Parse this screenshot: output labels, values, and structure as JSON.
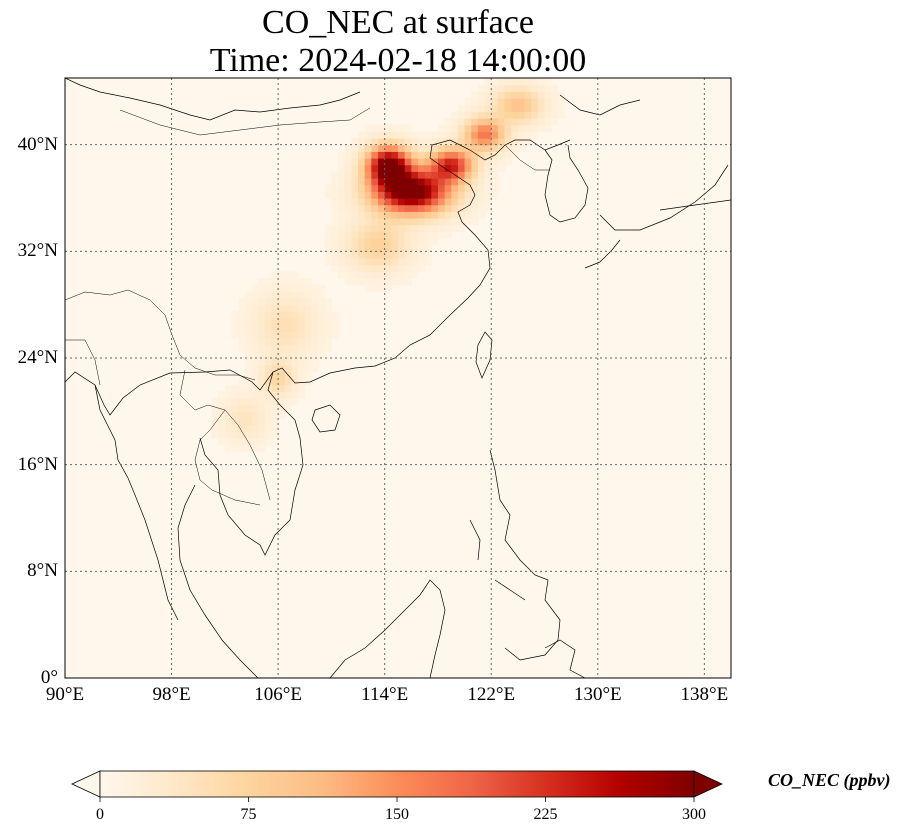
{
  "title": {
    "line1": "CO_NEC at surface",
    "line2": "Time: 2024-02-18 14:00:00"
  },
  "map": {
    "projection": "PlateCarree",
    "lon_range": [
      90,
      140
    ],
    "lat_range": [
      0,
      45
    ],
    "lat_ticks": [
      {
        "value": 40,
        "label": "40°N"
      },
      {
        "value": 32,
        "label": "32°N"
      },
      {
        "value": 24,
        "label": "24°N"
      },
      {
        "value": 16,
        "label": "16°N"
      },
      {
        "value": 8,
        "label": "8°N"
      },
      {
        "value": 0,
        "label": "0°"
      }
    ],
    "lon_ticks": [
      {
        "value": 90,
        "label": "90°E"
      },
      {
        "value": 98,
        "label": "98°E"
      },
      {
        "value": 106,
        "label": "106°E"
      },
      {
        "value": 114,
        "label": "114°E"
      },
      {
        "value": 122,
        "label": "122°E"
      },
      {
        "value": 130,
        "label": "130°E"
      },
      {
        "value": 138,
        "label": "138°E"
      }
    ],
    "gridlines": "dotted",
    "features": [
      "coastlines",
      "country borders"
    ],
    "field_plumes": [
      {
        "lon": 116.0,
        "lat": 36.5,
        "value": 320,
        "lon_spread": 2.8,
        "lat_spread": 1.6
      },
      {
        "lon": 114.3,
        "lat": 38.5,
        "value": 300,
        "lon_spread": 1.6,
        "lat_spread": 1.4
      },
      {
        "lon": 119.0,
        "lat": 38.5,
        "value": 220,
        "lon_spread": 1.6,
        "lat_spread": 1.2
      },
      {
        "lon": 121.5,
        "lat": 40.8,
        "value": 160,
        "lon_spread": 1.5,
        "lat_spread": 1.2
      },
      {
        "lon": 124.0,
        "lat": 43.0,
        "value": 90,
        "lon_spread": 1.8,
        "lat_spread": 1.3
      },
      {
        "lon": 113.5,
        "lat": 32.5,
        "value": 70,
        "lon_spread": 2.2,
        "lat_spread": 1.8
      },
      {
        "lon": 106.5,
        "lat": 26.5,
        "value": 45,
        "lon_spread": 2.2,
        "lat_spread": 2.2
      },
      {
        "lon": 106.0,
        "lat": 22.5,
        "value": 60,
        "lon_spread": 1.2,
        "lat_spread": 1.3
      },
      {
        "lon": 103.5,
        "lat": 19.5,
        "value": 35,
        "lon_spread": 1.6,
        "lat_spread": 1.6
      }
    ],
    "field_background": 10
  },
  "colorbar": {
    "colormap": "OrRd",
    "min": 0,
    "max": 300,
    "extend": "both",
    "orientation": "horizontal",
    "ticks": [
      "0",
      "75",
      "150",
      "225",
      "300"
    ],
    "stops": [
      "#fff7ec",
      "#fee8c8",
      "#fdd49e",
      "#fdbb84",
      "#fc8d59",
      "#ef6548",
      "#d7301f",
      "#b30000",
      "#7f0000"
    ],
    "label": "CO_NEC (ppbv)"
  }
}
